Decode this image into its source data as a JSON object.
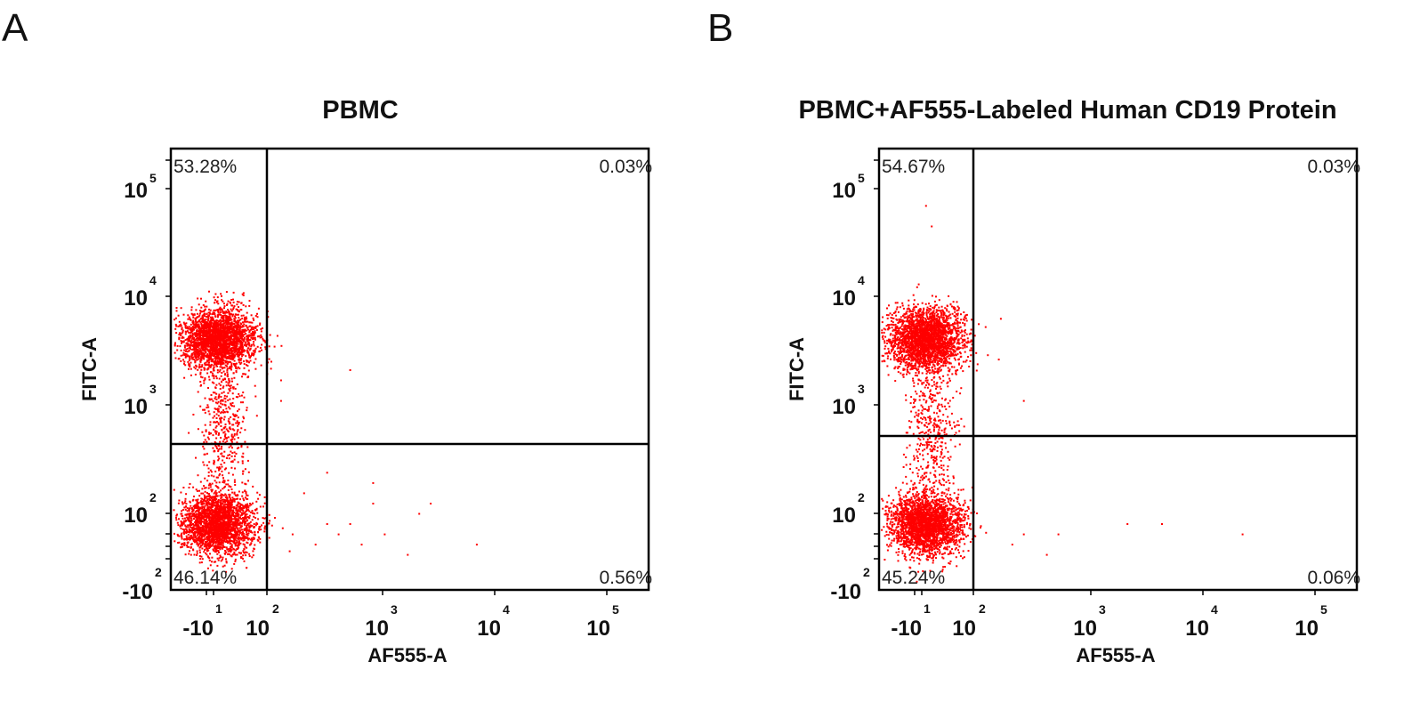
{
  "chart_data": [
    {
      "type": "scatter",
      "panel_label": "A",
      "title": "PBMC",
      "xlabel": "AF555-A",
      "ylabel": "FITC-A",
      "x_ticks": [
        {
          "base": "-10",
          "exp": "1"
        },
        {
          "base": "10",
          "exp": "2"
        },
        {
          "base": "10",
          "exp": "3"
        },
        {
          "base": "10",
          "exp": "4"
        },
        {
          "base": "10",
          "exp": "5"
        }
      ],
      "y_ticks": [
        {
          "base": "-10",
          "exp": "2"
        },
        {
          "base": "10",
          "exp": "2"
        },
        {
          "base": "10",
          "exp": "3"
        },
        {
          "base": "10",
          "exp": "4"
        },
        {
          "base": "10",
          "exp": "5"
        }
      ],
      "quadrants": {
        "upper_left": "53.28%",
        "upper_right": "0.03%",
        "lower_left": "46.14%",
        "lower_right": "0.56%"
      },
      "point_color": "#ff0000",
      "populations": [
        {
          "name": "FITC+ cluster",
          "x_center": 1.55,
          "y_center": 3.5,
          "x_spread": 0.16,
          "y_spread": 0.15,
          "count": 2600
        },
        {
          "name": "FITC- cluster",
          "x_center": 1.55,
          "y_center": 1.7,
          "x_spread": 0.16,
          "y_spread": 0.15,
          "count": 2500
        },
        {
          "name": "bridge",
          "x_center": 1.6,
          "y_center": 2.6,
          "x_spread": 0.1,
          "y_spread": 0.4,
          "count": 450
        }
      ],
      "outliers": [
        [
          2.7,
          3.2
        ],
        [
          2.1,
          2.9
        ],
        [
          2.1,
          3.1
        ],
        [
          3.8,
          1.5
        ],
        [
          2.6,
          1.6
        ],
        [
          2.7,
          1.7
        ],
        [
          2.9,
          1.9
        ],
        [
          3.0,
          1.6
        ],
        [
          3.3,
          1.8
        ],
        [
          3.4,
          1.9
        ],
        [
          2.5,
          1.7
        ],
        [
          2.4,
          1.5
        ],
        [
          2.8,
          1.5
        ],
        [
          3.2,
          1.4
        ],
        [
          2.2,
          1.6
        ],
        [
          2.3,
          2.0
        ],
        [
          2.5,
          2.2
        ],
        [
          2.9,
          2.1
        ]
      ]
    },
    {
      "type": "scatter",
      "panel_label": "B",
      "title": "PBMC+AF555-Labeled Human CD19 Protein",
      "xlabel": "AF555-A",
      "ylabel": "FITC-A",
      "x_ticks": [
        {
          "base": "-10",
          "exp": "1"
        },
        {
          "base": "10",
          "exp": "2"
        },
        {
          "base": "10",
          "exp": "3"
        },
        {
          "base": "10",
          "exp": "4"
        },
        {
          "base": "10",
          "exp": "5"
        }
      ],
      "y_ticks": [
        {
          "base": "-10",
          "exp": "2"
        },
        {
          "base": "10",
          "exp": "2"
        },
        {
          "base": "10",
          "exp": "3"
        },
        {
          "base": "10",
          "exp": "4"
        },
        {
          "base": "10",
          "exp": "5"
        }
      ],
      "quadrants": {
        "upper_left": "54.67%",
        "upper_right": "0.03%",
        "lower_left": "45.24%",
        "lower_right": "0.06%"
      },
      "point_color": "#ff0000",
      "populations": [
        {
          "name": "FITC+ cluster",
          "x_center": 1.55,
          "y_center": 3.5,
          "x_spread": 0.16,
          "y_spread": 0.15,
          "count": 2600
        },
        {
          "name": "FITC- cluster",
          "x_center": 1.55,
          "y_center": 1.7,
          "x_spread": 0.16,
          "y_spread": 0.15,
          "count": 2500
        },
        {
          "name": "bridge",
          "x_center": 1.6,
          "y_center": 2.6,
          "x_spread": 0.1,
          "y_spread": 0.4,
          "count": 450
        }
      ],
      "outliers": [
        [
          1.55,
          4.8
        ],
        [
          1.6,
          4.6
        ],
        [
          2.2,
          3.7
        ],
        [
          2.4,
          2.9
        ],
        [
          2.4,
          1.6
        ],
        [
          2.7,
          1.6
        ],
        [
          3.3,
          1.7
        ],
        [
          3.6,
          1.7
        ],
        [
          4.3,
          1.6
        ],
        [
          2.3,
          1.5
        ],
        [
          2.6,
          1.4
        ]
      ]
    }
  ]
}
